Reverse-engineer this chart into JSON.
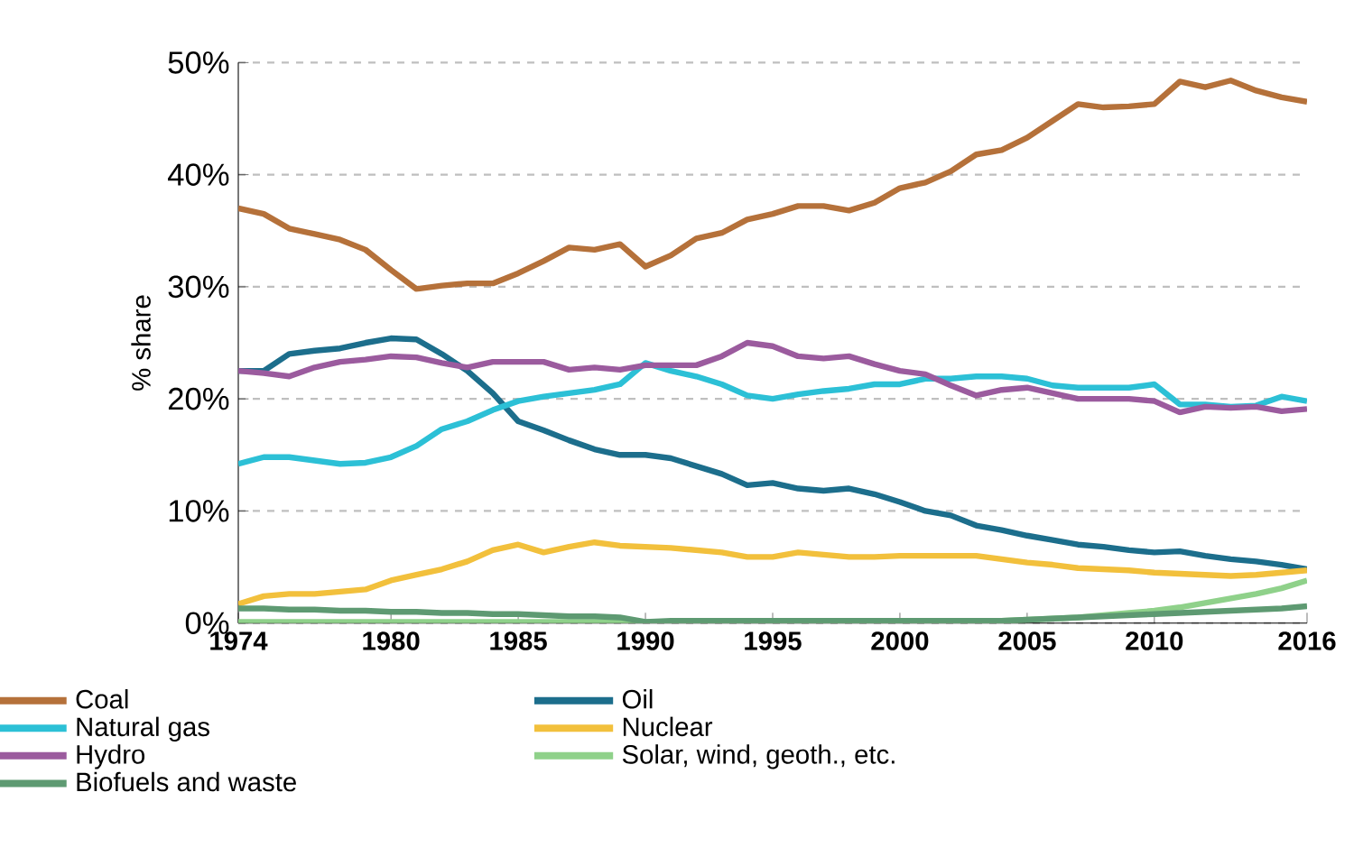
{
  "chart_data": {
    "type": "line",
    "ylabel": "% share",
    "x": [
      1974,
      1975,
      1976,
      1977,
      1978,
      1979,
      1980,
      1981,
      1982,
      1983,
      1984,
      1985,
      1986,
      1987,
      1988,
      1989,
      1990,
      1991,
      1992,
      1993,
      1994,
      1995,
      1996,
      1997,
      1998,
      1999,
      2000,
      2001,
      2002,
      2003,
      2004,
      2005,
      2006,
      2007,
      2008,
      2009,
      2010,
      2011,
      2012,
      2013,
      2014,
      2015,
      2016
    ],
    "xlim": [
      1974,
      2016
    ],
    "xticks": [
      1974,
      1980,
      1985,
      1990,
      1995,
      2000,
      2005,
      2010,
      2016
    ],
    "ylim": [
      0,
      50
    ],
    "yticks": [
      {
        "value": 0,
        "label": "0%"
      },
      {
        "value": 10,
        "label": "10%"
      },
      {
        "value": 20,
        "label": "20%"
      },
      {
        "value": 30,
        "label": "30%"
      },
      {
        "value": 40,
        "label": "40%"
      },
      {
        "value": 50,
        "label": "50%"
      }
    ],
    "grid": "y",
    "legend": "bottom",
    "line_style": "solid",
    "marker": "none",
    "series": [
      {
        "name": "Coal",
        "color": "#b5713a",
        "values": [
          37,
          36.5,
          35.2,
          34.7,
          34.2,
          33.3,
          31.5,
          29.8,
          30.1,
          30.3,
          30.3,
          31.2,
          32.3,
          33.5,
          33.3,
          33.8,
          31.8,
          32.8,
          34.3,
          34.8,
          36,
          36.5,
          37.2,
          37.2,
          36.8,
          37.5,
          38.8,
          39.3,
          40.3,
          41.8,
          42.2,
          43.3,
          44.8,
          46.3,
          46,
          46.1,
          46.3,
          48.3,
          47.8,
          48.4,
          47.5,
          46.9,
          46.5
        ]
      },
      {
        "name": "Oil",
        "color": "#1c6e8c",
        "values": [
          22.5,
          22.5,
          24,
          24.3,
          24.5,
          25,
          25.4,
          25.3,
          24,
          22.5,
          20.5,
          18,
          17.2,
          16.3,
          15.5,
          15,
          15,
          14.7,
          14,
          13.3,
          12.3,
          12.5,
          12,
          11.8,
          12,
          11.5,
          10.8,
          10,
          9.6,
          8.7,
          8.3,
          7.8,
          7.4,
          7,
          6.8,
          6.5,
          6.3,
          6.4,
          6,
          5.7,
          5.5,
          5.2,
          4.8
        ]
      },
      {
        "name": "Natural gas",
        "color": "#2cc0d6",
        "values": [
          14.2,
          14.8,
          14.8,
          14.5,
          14.2,
          14.3,
          14.8,
          15.8,
          17.3,
          18,
          19,
          19.8,
          20.2,
          20.5,
          20.8,
          21.3,
          23.2,
          22.5,
          22,
          21.3,
          20.3,
          20,
          20.4,
          20.7,
          20.9,
          21.3,
          21.3,
          21.8,
          21.8,
          22,
          22,
          21.8,
          21.2,
          21,
          21,
          21,
          21.3,
          19.5,
          19.5,
          19.3,
          19.4,
          20.2,
          19.8
        ]
      },
      {
        "name": "Nuclear",
        "color": "#f2c03c",
        "values": [
          1.7,
          2.4,
          2.6,
          2.6,
          2.8,
          3,
          3.8,
          4.3,
          4.8,
          5.5,
          6.5,
          7,
          6.3,
          6.8,
          7.2,
          6.9,
          6.8,
          6.7,
          6.5,
          6.3,
          5.9,
          5.9,
          6.3,
          6.1,
          5.9,
          5.9,
          6,
          6,
          6,
          6,
          5.7,
          5.4,
          5.2,
          4.9,
          4.8,
          4.7,
          4.5,
          4.4,
          4.3,
          4.2,
          4.3,
          4.5,
          4.7
        ]
      },
      {
        "name": "Hydro",
        "color": "#9b5b9e",
        "values": [
          22.5,
          22.3,
          22,
          22.8,
          23.3,
          23.5,
          23.8,
          23.7,
          23.2,
          22.8,
          23.3,
          23.3,
          23.3,
          22.6,
          22.8,
          22.6,
          23,
          23,
          23,
          23.8,
          25,
          24.7,
          23.8,
          23.6,
          23.8,
          23.1,
          22.5,
          22.2,
          21.2,
          20.3,
          20.8,
          21,
          20.5,
          20,
          20,
          20,
          19.8,
          18.8,
          19.3,
          19.2,
          19.3,
          18.9,
          19.1
        ]
      },
      {
        "name": "Solar, wind, geoth., etc.",
        "color": "#8fd18a",
        "values": [
          0.1,
          0.1,
          0.1,
          0.1,
          0.1,
          0.1,
          0.1,
          0.1,
          0.1,
          0.1,
          0.1,
          0.1,
          0.1,
          0.1,
          0.1,
          0.1,
          0.1,
          0.1,
          0.1,
          0.1,
          0.1,
          0.1,
          0.1,
          0.1,
          0.1,
          0.1,
          0.2,
          0.2,
          0.2,
          0.2,
          0.2,
          0.3,
          0.4,
          0.5,
          0.7,
          0.9,
          1.1,
          1.4,
          1.8,
          2.2,
          2.6,
          3.1,
          3.8
        ]
      },
      {
        "name": "Biofuels and waste",
        "color": "#5e9a72",
        "values": [
          1.3,
          1.3,
          1.2,
          1.2,
          1.1,
          1.1,
          1,
          1,
          0.9,
          0.9,
          0.8,
          0.8,
          0.7,
          0.6,
          0.6,
          0.5,
          0.1,
          0.2,
          0.2,
          0.2,
          0.2,
          0.2,
          0.2,
          0.2,
          0.2,
          0.2,
          0.2,
          0.2,
          0.2,
          0.2,
          0.2,
          0.3,
          0.4,
          0.5,
          0.6,
          0.7,
          0.8,
          0.9,
          1,
          1.1,
          1.2,
          1.3,
          1.5
        ]
      }
    ]
  }
}
